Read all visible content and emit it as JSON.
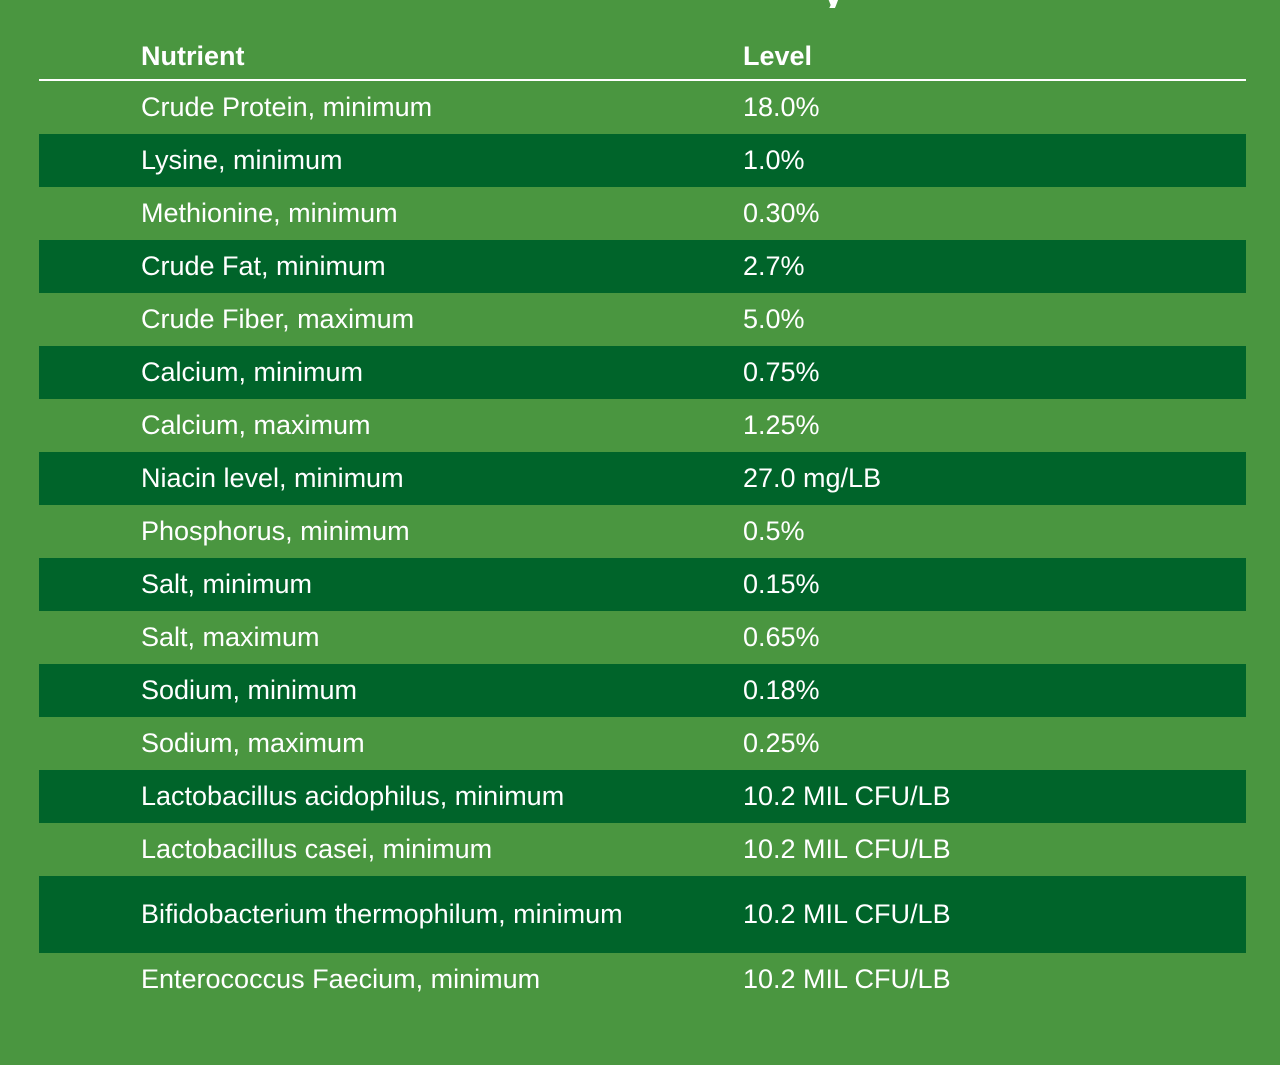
{
  "table": {
    "headers": {
      "nutrient": "Nutrient",
      "level": "Level"
    },
    "rows": [
      {
        "nutrient": "Crude Protein, minimum",
        "level": "18.0%"
      },
      {
        "nutrient": "Lysine, minimum",
        "level": "1.0%"
      },
      {
        "nutrient": "Methionine, minimum",
        "level": "0.30%"
      },
      {
        "nutrient": "Crude Fat, minimum",
        "level": "2.7%"
      },
      {
        "nutrient": "Crude Fiber, maximum",
        "level": "5.0%"
      },
      {
        "nutrient": "Calcium, minimum",
        "level": "0.75%"
      },
      {
        "nutrient": "Calcium, maximum",
        "level": "1.25%"
      },
      {
        "nutrient": "Niacin level, minimum",
        "level": "27.0 mg/LB"
      },
      {
        "nutrient": "Phosphorus, minimum",
        "level": "0.5%"
      },
      {
        "nutrient": "Salt, minimum",
        "level": "0.15%"
      },
      {
        "nutrient": "Salt, maximum",
        "level": "0.65%"
      },
      {
        "nutrient": "Sodium, minimum",
        "level": "0.18%"
      },
      {
        "nutrient": "Sodium, maximum",
        "level": "0.25%"
      },
      {
        "nutrient": "Lactobacillus acidophilus, minimum",
        "level": "10.2 MIL CFU/LB"
      },
      {
        "nutrient": "Lactobacillus casei, minimum",
        "level": "10.2 MIL CFU/LB"
      },
      {
        "nutrient": "Bifidobacterium thermophilum, minimum",
        "level": "10.2 MIL CFU/LB"
      },
      {
        "nutrient": "Enterococcus Faecium, minimum",
        "level": "10.2 MIL CFU/LB"
      }
    ]
  },
  "colors": {
    "background": "#4a9640",
    "stripe": "#00642a",
    "text": "#ffffff"
  }
}
